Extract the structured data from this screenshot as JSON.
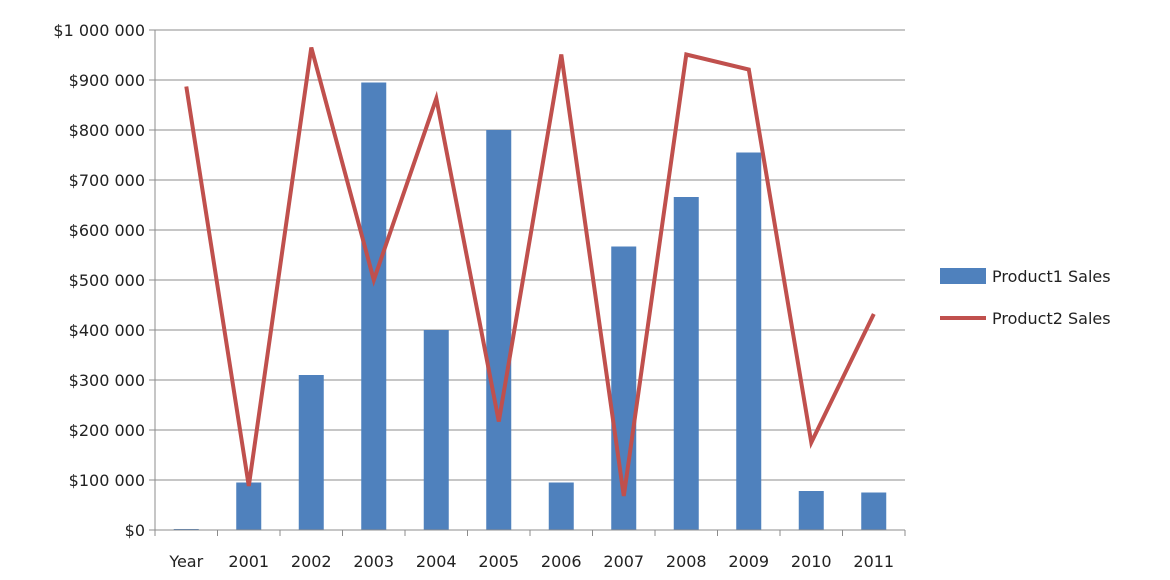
{
  "chart_data": {
    "type": "bar",
    "categories": [
      "Year",
      "2001",
      "2002",
      "2003",
      "2004",
      "2005",
      "2006",
      "2007",
      "2008",
      "2009",
      "2010",
      "2011"
    ],
    "series": [
      {
        "name": "Product1 Sales",
        "type": "bar",
        "color": "#4f81bd",
        "values": [
          2011,
          95000,
          310000,
          895000,
          400000,
          800000,
          95000,
          567000,
          666000,
          755000,
          78000,
          75000
        ]
      },
      {
        "name": "Product2 Sales",
        "type": "line",
        "color": "#c0504d",
        "values": [
          887000,
          88000,
          965000,
          500000,
          863000,
          217000,
          951000,
          68000,
          951000,
          921000,
          175000,
          432000
        ]
      }
    ],
    "y_ticks": [
      "$0",
      "$100 000",
      "$200 000",
      "$300 000",
      "$400 000",
      "$500 000",
      "$600 000",
      "$700 000",
      "$800 000",
      "$900 000",
      "$1 000 000"
    ],
    "ylim": [
      0,
      1000000
    ],
    "grid": true,
    "legend": "right",
    "title": "",
    "xlabel": "",
    "ylabel": ""
  }
}
